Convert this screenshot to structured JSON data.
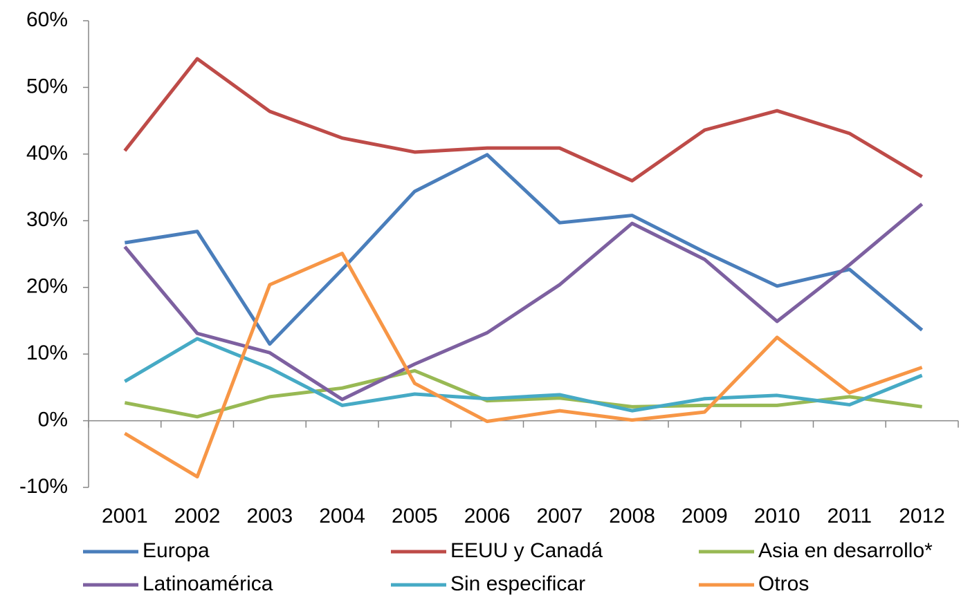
{
  "chart_data": {
    "type": "line",
    "categories": [
      "2001",
      "2002",
      "2003",
      "2004",
      "2005",
      "2006",
      "2007",
      "2008",
      "2009",
      "2010",
      "2011",
      "2012"
    ],
    "series": [
      {
        "name": "Europa",
        "color": "#4a7ebb",
        "values": [
          26.7,
          28.4,
          11.5,
          22.7,
          34.4,
          39.9,
          29.7,
          30.8,
          25.3,
          20.2,
          22.7,
          13.6
        ]
      },
      {
        "name": "EEUU y Canadá",
        "color": "#be4b48",
        "values": [
          40.5,
          54.3,
          46.4,
          42.4,
          40.3,
          40.9,
          40.9,
          36.0,
          43.6,
          46.5,
          43.1,
          36.6
        ]
      },
      {
        "name": "Asia en desarrollo*",
        "color": "#98b954",
        "values": [
          2.7,
          0.6,
          3.6,
          4.9,
          7.5,
          3.0,
          3.4,
          2.1,
          2.3,
          2.3,
          3.6,
          2.1
        ]
      },
      {
        "name": "Latinoamérica",
        "color": "#7d60a0",
        "values": [
          26.1,
          13.1,
          10.2,
          3.2,
          8.5,
          13.2,
          20.4,
          29.6,
          24.2,
          14.9,
          23.4,
          32.5
        ]
      },
      {
        "name": "Sin especificar",
        "color": "#46aac5",
        "values": [
          5.9,
          12.3,
          7.9,
          2.3,
          4.0,
          3.3,
          3.9,
          1.5,
          3.3,
          3.8,
          2.4,
          6.8
        ]
      },
      {
        "name": "Otros",
        "color": "#f79646",
        "values": [
          -1.9,
          -8.4,
          20.4,
          25.1,
          5.6,
          -0.1,
          1.5,
          0.1,
          1.3,
          12.5,
          4.2,
          8.0
        ]
      }
    ],
    "ylim": [
      -10,
      60
    ],
    "yticks": [
      {
        "value": -10,
        "label": "-10%"
      },
      {
        "value": 0,
        "label": "0%"
      },
      {
        "value": 10,
        "label": "10%"
      },
      {
        "value": 20,
        "label": "20%"
      },
      {
        "value": 30,
        "label": "30%"
      },
      {
        "value": 40,
        "label": "40%"
      },
      {
        "value": 50,
        "label": "50%"
      },
      {
        "value": 60,
        "label": "60%"
      }
    ],
    "legend": "bottom"
  }
}
